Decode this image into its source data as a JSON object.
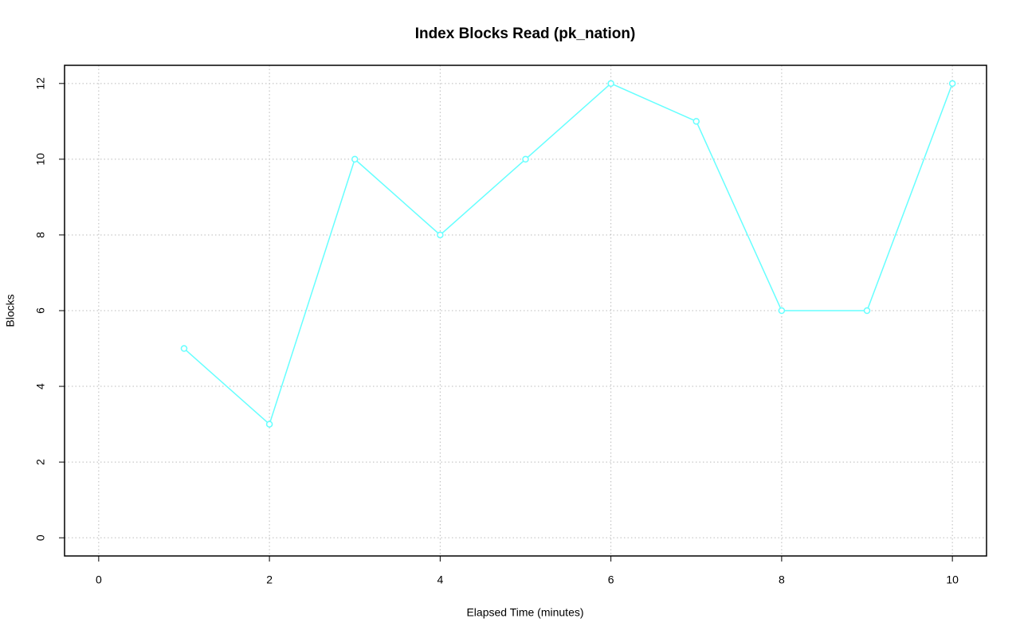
{
  "chart_data": {
    "type": "line",
    "title": "Index Blocks Read (pk_nation)",
    "x_label": "Elapsed Time (minutes)",
    "y_label": "Blocks",
    "x": [
      1,
      2,
      3,
      4,
      5,
      6,
      7,
      8,
      9,
      10
    ],
    "series": [
      {
        "name": "pk_nation",
        "color": "#66ffff",
        "values": [
          5,
          3,
          10,
          8,
          10,
          12,
          11,
          6,
          6,
          12
        ]
      }
    ],
    "xlim": [
      -0.4,
      10.4
    ],
    "xticks": [
      0,
      2,
      4,
      6,
      8,
      10
    ],
    "ylim": [
      -0.48,
      12.48
    ],
    "yticks": [
      0,
      2,
      4,
      6,
      8,
      10,
      12
    ],
    "grid": true
  }
}
